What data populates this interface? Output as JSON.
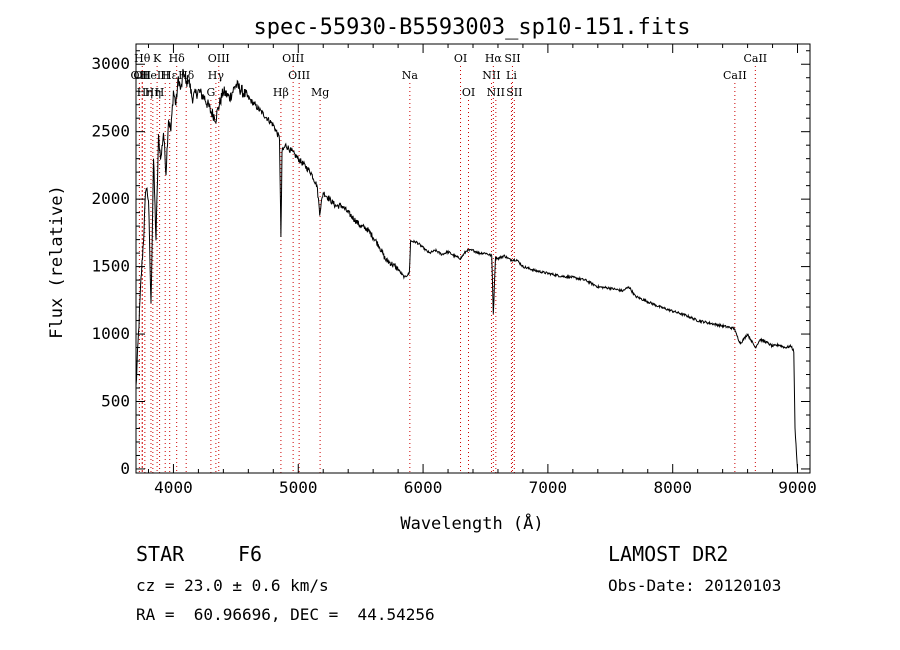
{
  "chart_data": {
    "type": "line",
    "title": "spec-55930-B5593003_sp10-151.fits",
    "xlabel": "Wavelength (Å)",
    "ylabel": "Flux (relative)",
    "xlim": [
      3700,
      9100
    ],
    "ylim": [
      -30,
      3150
    ],
    "x_ticks": [
      4000,
      5000,
      6000,
      7000,
      8000,
      9000
    ],
    "y_ticks": [
      0,
      500,
      1000,
      1500,
      2000,
      2500,
      3000
    ],
    "grid": false,
    "series": [
      {
        "color": "#000000",
        "x": [
          3700,
          3720,
          3740,
          3760,
          3780,
          3800,
          3820,
          3840,
          3860,
          3880,
          3900,
          3920,
          3940,
          3960,
          3980,
          4000,
          4020,
          4040,
          4060,
          4080,
          4100,
          4120,
          4150,
          4200,
          4250,
          4300,
          4340,
          4360,
          4400,
          4450,
          4500,
          4550,
          4600,
          4650,
          4700,
          4750,
          4800,
          4850,
          4861,
          4870,
          4900,
          4950,
          5000,
          5050,
          5100,
          5150,
          5172,
          5200,
          5250,
          5300,
          5350,
          5400,
          5450,
          5500,
          5550,
          5600,
          5650,
          5700,
          5750,
          5800,
          5850,
          5890,
          5900,
          5950,
          6000,
          6050,
          6100,
          6150,
          6200,
          6250,
          6300,
          6350,
          6400,
          6450,
          6500,
          6550,
          6563,
          6580,
          6600,
          6650,
          6700,
          6750,
          6800,
          6900,
          7000,
          7100,
          7200,
          7300,
          7400,
          7500,
          7600,
          7650,
          7700,
          7800,
          7900,
          8000,
          8100,
          8200,
          8300,
          8400,
          8498,
          8500,
          8542,
          8600,
          8662,
          8700,
          8750,
          8800,
          8850,
          8900,
          8950,
          8970,
          8980,
          9000
        ],
        "y": [
          600,
          1000,
          1400,
          1700,
          2100,
          2000,
          1200,
          2300,
          1700,
          2450,
          2300,
          2500,
          2200,
          2600,
          2500,
          2800,
          2700,
          2900,
          2800,
          2950,
          2850,
          2900,
          2750,
          2800,
          2750,
          2650,
          2600,
          2680,
          2800,
          2750,
          2850,
          2800,
          2750,
          2700,
          2650,
          2600,
          2550,
          2450,
          1700,
          2350,
          2400,
          2350,
          2300,
          2250,
          2200,
          2100,
          1900,
          2050,
          2000,
          1950,
          1950,
          1900,
          1850,
          1800,
          1780,
          1720,
          1650,
          1550,
          1520,
          1480,
          1420,
          1450,
          1690,
          1680,
          1640,
          1600,
          1620,
          1590,
          1610,
          1580,
          1560,
          1620,
          1620,
          1600,
          1600,
          1580,
          1150,
          1570,
          1560,
          1580,
          1550,
          1550,
          1500,
          1470,
          1450,
          1430,
          1420,
          1400,
          1350,
          1340,
          1320,
          1350,
          1280,
          1240,
          1200,
          1170,
          1140,
          1100,
          1080,
          1060,
          1040,
          1020,
          930,
          1000,
          900,
          960,
          940,
          910,
          920,
          900,
          910,
          870,
          300,
          0
        ]
      }
    ],
    "line_ids": [
      {
        "x": 3727,
        "label": "OII",
        "row": 2
      },
      {
        "x": 3750,
        "label": "Hθ",
        "row": 1
      },
      {
        "x": 3750,
        "label": "OII",
        "row": 2
      },
      {
        "x": 3771,
        "label": "Hη",
        "row": 3
      },
      {
        "x": 3820,
        "label": "HeI",
        "row": 2
      },
      {
        "x": 3835,
        "label": "Hη",
        "row": 3
      },
      {
        "x": 3869,
        "label": "K",
        "row": 1
      },
      {
        "x": 3889,
        "label": "H",
        "row": 3
      },
      {
        "x": 3934,
        "label": "H",
        "row": 2
      },
      {
        "x": 3970,
        "label": "Hε",
        "row": 2
      },
      {
        "x": 4026,
        "label": "Hδ",
        "row": 1
      },
      {
        "x": 4102,
        "label": "Hδ",
        "row": 2
      },
      {
        "x": 4300,
        "label": "G",
        "row": 3
      },
      {
        "x": 4340,
        "label": "Hγ",
        "row": 2
      },
      {
        "x": 4363,
        "label": "OIII",
        "row": 1
      },
      {
        "x": 4861,
        "label": "Hβ",
        "row": 3
      },
      {
        "x": 4959,
        "label": "OIII",
        "row": 1
      },
      {
        "x": 5007,
        "label": "OIII",
        "row": 2
      },
      {
        "x": 5175,
        "label": "Mg",
        "row": 3
      },
      {
        "x": 5894,
        "label": "Na",
        "row": 2
      },
      {
        "x": 6300,
        "label": "OI",
        "row": 1
      },
      {
        "x": 6364,
        "label": "OI",
        "row": 3
      },
      {
        "x": 6548,
        "label": "NII",
        "row": 2
      },
      {
        "x": 6563,
        "label": "Hα",
        "row": 1
      },
      {
        "x": 6583,
        "label": "NII",
        "row": 3
      },
      {
        "x": 6708,
        "label": "Li",
        "row": 2
      },
      {
        "x": 6716,
        "label": "SII",
        "row": 1
      },
      {
        "x": 6731,
        "label": "SII",
        "row": 3
      },
      {
        "x": 8498,
        "label": "CaII",
        "row": 2
      },
      {
        "x": 8662,
        "label": "CaII",
        "row": 1
      }
    ],
    "line_ids_color": "#cc0000"
  },
  "info": {
    "object_class": "STAR",
    "subclass": "F6",
    "survey": "LAMOST DR2",
    "cz": "cz = 23.0 ± 0.6 km/s",
    "obs_date": "Obs-Date: 20120103",
    "coords": "RA =  60.96696, DEC =  44.54256"
  }
}
